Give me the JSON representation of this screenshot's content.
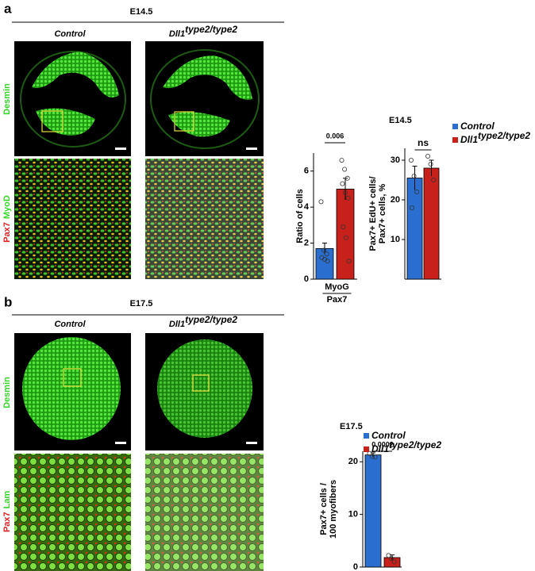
{
  "panels": [
    {
      "label": "a",
      "stage": "E14.5",
      "columns": [
        {
          "text": "Control"
        },
        {
          "text": "Dll1",
          "sup": "type2/type2"
        }
      ],
      "rows": [
        [
          "Desmin"
        ],
        [
          "Pax7",
          "MyoD"
        ]
      ]
    },
    {
      "label": "b",
      "stage": "E17.5",
      "columns": [
        {
          "text": "Control"
        },
        {
          "text": "Dll1",
          "sup": "type2/type2"
        }
      ],
      "rows": [
        [
          "Desmin"
        ],
        [
          "Pax7",
          "Lam"
        ]
      ]
    }
  ],
  "chart_data": [
    {
      "type": "bar",
      "title": "E14.5",
      "y_label": [
        "Ratio of cells"
      ],
      "x_label": {
        "numerator": "MyoG",
        "denominator": "Pax7"
      },
      "ylim": [
        0,
        7
      ],
      "yticks": [
        0,
        2,
        4,
        6
      ],
      "annotation": "0.006",
      "series": [
        {
          "color": "#2a6fd0",
          "values": [
            1.7
          ],
          "errors": [
            0.3
          ],
          "points": [
            4.3,
            1.6,
            1.4,
            1.2,
            1.1,
            1.0
          ]
        },
        {
          "color": "#c8201b",
          "values": [
            5.0
          ],
          "errors": [
            0.6
          ],
          "points": [
            6.6,
            6.1,
            5.6,
            5.3,
            4.8,
            4.5,
            2.9,
            2.3,
            1.0
          ]
        }
      ]
    },
    {
      "type": "bar",
      "y_label": [
        "Pax7+ EdU+ cells/",
        "Pax7+ cells, %"
      ],
      "ylim": [
        0,
        33
      ],
      "yticks": [
        10,
        20,
        30
      ],
      "annotation": "ns",
      "legend": "right",
      "series": [
        {
          "name": "Control",
          "color": "#2a6fd0",
          "values": [
            25.5
          ],
          "errors": [
            3
          ],
          "points": [
            30,
            26,
            22,
            18
          ]
        },
        {
          "name": "Dll1",
          "name_sup": "type2/type2",
          "color": "#c8201b",
          "values": [
            28
          ],
          "errors": [
            2
          ],
          "points": [
            31,
            29,
            25
          ]
        }
      ]
    },
    {
      "type": "bar",
      "title": "E17.5",
      "y_label": [
        "Pax7+ cells /",
        "100 myofibers"
      ],
      "ylim": [
        0,
        22
      ],
      "yticks": [
        0,
        10,
        20
      ],
      "annotation": "0.0002",
      "legend": "top",
      "series": [
        {
          "name": "Control",
          "color": "#2a6fd0",
          "values": [
            21.3
          ],
          "errors": [
            0.4
          ],
          "points": [
            21.6,
            21.0,
            20.9
          ]
        },
        {
          "name": "Dll1",
          "name_sup": "type2/type2",
          "color": "#c8201b",
          "values": [
            1.8
          ],
          "errors": [
            0.5
          ],
          "points": [
            2.2,
            1.6,
            1.0
          ]
        }
      ]
    }
  ]
}
